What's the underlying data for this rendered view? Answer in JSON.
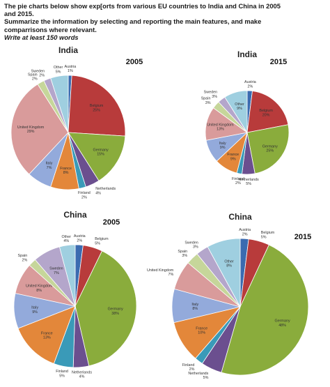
{
  "prompt": {
    "line1": "The pie charts below show exp[orts from various EU countries to India and China in 2005",
    "line2": "and 2015.",
    "line3": "Summarize the information by selecting and reporting the main features, and make",
    "line4": "comparrisons where relevant.",
    "line5": "Write at least 150 words"
  },
  "colors": {
    "Austria": "#3b6bb0",
    "Belgium": "#b83b3b",
    "Germany": "#8aac3c",
    "Netherlands": "#6b4f8f",
    "Finland": "#3a9ab8",
    "France": "#e3873a",
    "Italy": "#93aadb",
    "United Kingdom": "#d99b9b",
    "Spain": "#c6d69a",
    "Sweden": "#b4a6cb",
    "Other": "#9fcfe0"
  },
  "chart_data": [
    {
      "type": "pie",
      "country": "India",
      "year": "2005",
      "categories": [
        "Austria",
        "Belgium",
        "Germany",
        "Netherlands",
        "Finland",
        "France",
        "Italy",
        "United Kingdom",
        "Spain",
        "Sweden",
        "Other"
      ],
      "values": [
        1,
        25,
        15,
        4,
        2,
        8,
        7,
        29,
        2,
        2,
        5
      ],
      "labels": [
        "1%",
        "25%",
        "15%",
        "4%",
        "2%",
        "8%",
        "7%",
        "29%",
        "2%",
        "2%",
        "5%"
      ]
    },
    {
      "type": "pie",
      "country": "India",
      "year": "2015",
      "categories": [
        "Austria",
        "Belgium",
        "Germany",
        "Netherlands",
        "Finland",
        "France",
        "Italy",
        "United Kingdom",
        "Spain",
        "Sweden",
        "Other"
      ],
      "values": [
        2,
        20,
        25,
        5,
        2,
        9,
        9,
        13,
        3,
        3,
        9
      ],
      "labels": [
        "2%",
        "20%",
        "25%",
        "5%",
        "2%",
        "9%",
        "9%",
        "13%",
        "3%",
        "3%",
        "9%"
      ]
    },
    {
      "type": "pie",
      "country": "China",
      "year": "2005",
      "categories": [
        "Austria",
        "Belgium",
        "Germany",
        "Netherlands",
        "Finland",
        "France",
        "Italy",
        "United Kingdom",
        "Spain",
        "Sweden",
        "Other"
      ],
      "values": [
        2,
        5,
        38,
        4,
        5,
        13,
        9,
        8,
        2,
        7,
        4
      ],
      "labels": [
        "2%",
        "5%",
        "38%",
        "4%",
        "5%",
        "13%",
        "9%",
        "8%",
        "2%",
        "7%",
        "4%"
      ]
    },
    {
      "type": "pie",
      "country": "China",
      "year": "2015",
      "categories": [
        "Austria",
        "Belgium",
        "Germany",
        "Netherlands",
        "Finland",
        "France",
        "Italy",
        "United Kingdom",
        "Spain",
        "Sweden",
        "Other"
      ],
      "values": [
        2,
        5,
        48,
        5,
        2,
        10,
        8,
        7,
        3,
        3,
        8
      ],
      "labels": [
        "2%",
        "5%",
        "48%",
        "5%",
        "2%",
        "10%",
        "8%",
        "7%",
        "3%",
        "3%",
        "8%"
      ]
    }
  ]
}
